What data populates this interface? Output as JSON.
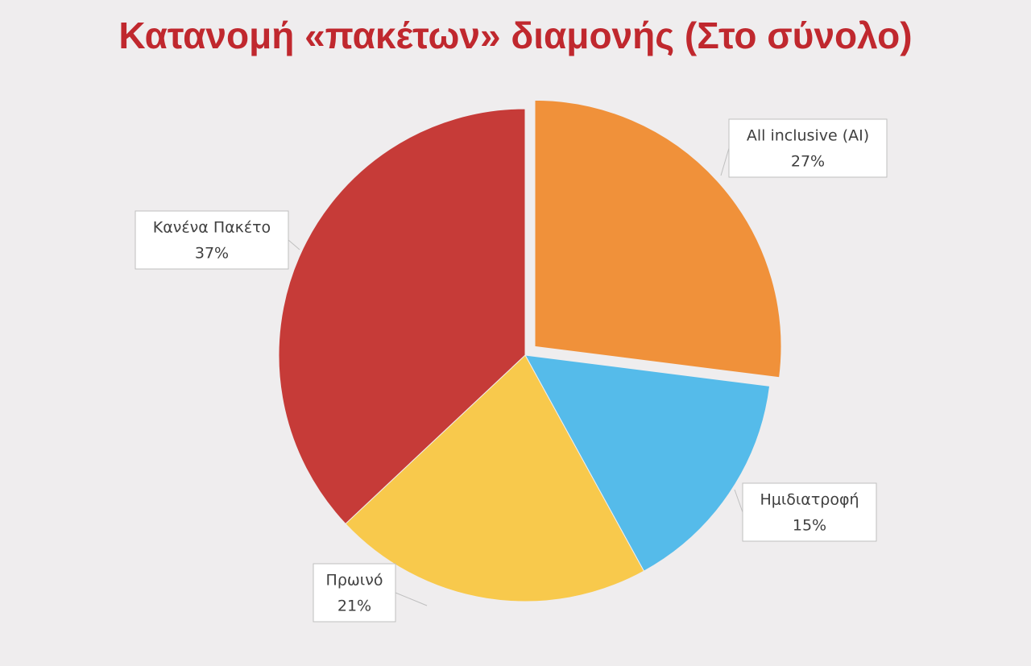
{
  "chart_data": {
    "type": "pie",
    "title": "Κατανομή «πακέτων» διαμονής (Στο σύνολο)",
    "categories": [
      "All inclusive (AI)",
      "Ημιδιατροφή",
      "Πρωινό",
      "Κανένα Πακέτο"
    ],
    "values": [
      27,
      15,
      21,
      37
    ],
    "value_labels": [
      "27%",
      "15%",
      "21%",
      "37%"
    ],
    "colors": [
      "#f0913a",
      "#55bbea",
      "#f8c94c",
      "#c63b38"
    ],
    "exploded": [
      true,
      false,
      false,
      false
    ]
  }
}
